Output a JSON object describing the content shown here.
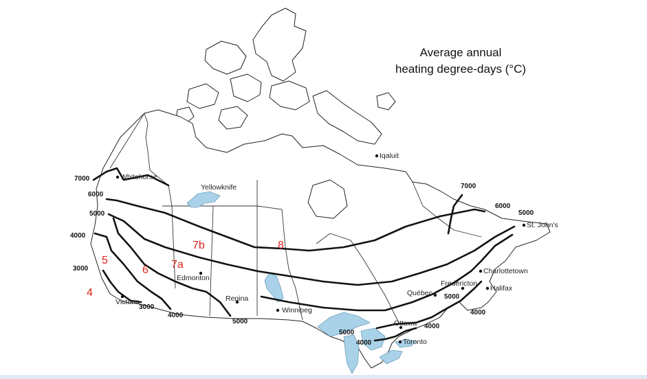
{
  "title": {
    "line1": "Average annual",
    "line2": "heating degree-days (°C)"
  },
  "cities": [
    "Whitehorse",
    "Yellowknife",
    "Iqaluit",
    "Edmonton",
    "Regina",
    "Winnipeg",
    "Victoria",
    "Québec",
    "Fredericton",
    "Charlottetown",
    "Halifax",
    "St. John's",
    "Ottawa",
    "Toronto"
  ],
  "isolines": {
    "w7000": "7000",
    "w6000": "6000",
    "w5000": "5000",
    "w4000": "4000",
    "w3000": "3000",
    "s3000": "3000",
    "s4000": "4000",
    "s5000": "5000",
    "e7000": "7000",
    "e6000": "6000",
    "e5000": "5000",
    "q5000": "5000",
    "se4000": "4000",
    "ne4000": "4000",
    "gl5000": "5000",
    "gl4000": "4000"
  },
  "zones": [
    "4",
    "5",
    "6",
    "7a",
    "7b",
    "8"
  ],
  "colors": {
    "zone_label": "#e0221b",
    "water": "#a9d2e8",
    "contour": "#111111"
  }
}
